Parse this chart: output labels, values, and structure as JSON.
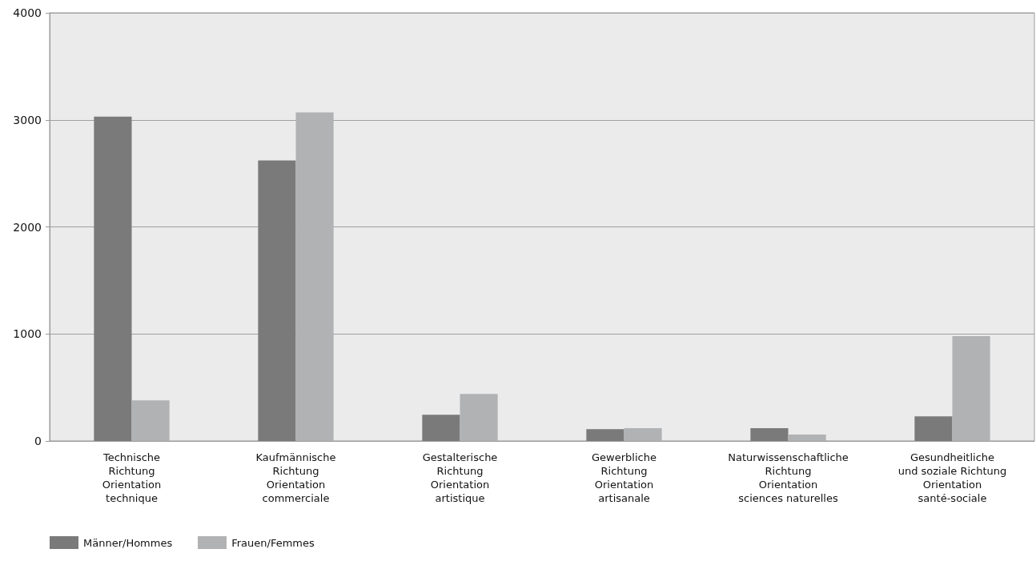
{
  "chart_data": {
    "type": "bar",
    "categories": [
      "Technische\nRichtung\nOrientation\ntechnique",
      "Kaufmännische\nRichtung\nOrientation\ncommerciale",
      "Gestalterische\nRichtung\nOrientation\nartistique",
      "Gewerbliche\nRichtung\nOrientation\nartisanale",
      "Naturwissenschaftliche\nRichtung\nOrientation\nsciences naturelles",
      "Gesundheitliche\nund soziale Richtung\nOrientation\nsanté-sociale"
    ],
    "series": [
      {
        "name": "Männer/Hommes",
        "color": "#7a7a7a",
        "values": [
          3030,
          2620,
          245,
          110,
          120,
          230
        ]
      },
      {
        "name": "Frauen/Femmes",
        "color": "#b1b2b3",
        "values": [
          380,
          3070,
          440,
          120,
          60,
          980
        ]
      }
    ],
    "ylim": [
      0,
      4000
    ],
    "yticks": [
      0,
      1000,
      2000,
      3000,
      4000
    ],
    "grid": "y",
    "legend": "bottom left"
  }
}
